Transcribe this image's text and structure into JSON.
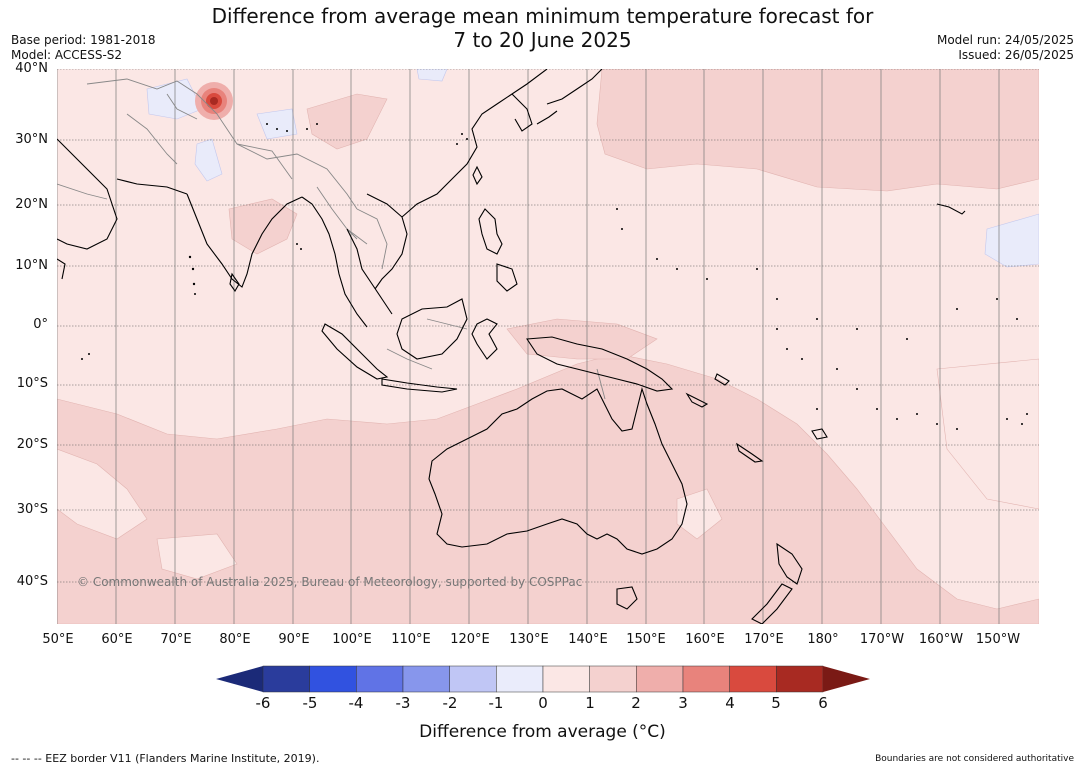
{
  "title": {
    "line1": "Difference from average mean minimum temperature forecast for",
    "line2": "7 to 20 June 2025"
  },
  "meta_left": {
    "base_period": "Base period: 1981-2018",
    "model": "Model: ACCESS-S2"
  },
  "meta_right": {
    "model_run": "Model run: 24/05/2025",
    "issued": "Issued: 26/05/2025"
  },
  "map": {
    "latitude_labels": [
      "40°N",
      "30°N",
      "20°N",
      "10°N",
      "0°",
      "10°S",
      "20°S",
      "30°S",
      "40°S"
    ],
    "longitude_labels": [
      "50°E",
      "60°E",
      "70°E",
      "80°E",
      "90°E",
      "100°E",
      "110°E",
      "120°E",
      "130°E",
      "140°E",
      "150°E",
      "160°E",
      "170°E",
      "180°",
      "170°W",
      "160°W",
      "150°W"
    ],
    "lat_range": [
      -46,
      40
    ],
    "lon_range": [
      50,
      217
    ],
    "copyright": "© Commonwealth of Australia 2025, Bureau of Meteorology, supported by COSPPac",
    "background_color": "#fbe7e5",
    "warm_region_color": "#f4d1cf",
    "cool_region_color": "#e9ebfa",
    "land_outline_color": "#000000",
    "border_color": "#888888",
    "grid_color": "#555555"
  },
  "colorbar": {
    "title": "Difference from average (°C)",
    "ticks": [
      "-6",
      "-5",
      "-4",
      "-3",
      "-2",
      "-1",
      "0",
      "1",
      "2",
      "3",
      "4",
      "5",
      "6"
    ],
    "colors": [
      "#2a3c9c",
      "#3152e0",
      "#6073e6",
      "#8796ec",
      "#c0c6f5",
      "#eaecfb",
      "#fbe7e5",
      "#f4d1cf",
      "#efaeab",
      "#e8837c",
      "#d94a3e",
      "#a82a22"
    ],
    "low_extend_color": "#1b2a78",
    "high_extend_color": "#7a1a15"
  },
  "footer": {
    "left": "-- -- -- EEZ border V11 (Flanders Marine Institute, 2019).",
    "right": "Boundaries are not considered authoritative"
  }
}
